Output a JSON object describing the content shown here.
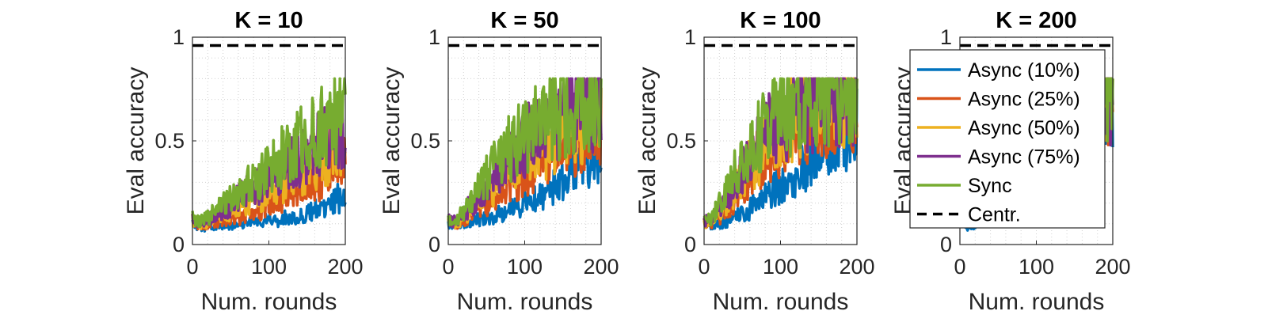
{
  "chart_data": [
    {
      "type": "line",
      "title": "K = 10",
      "xlabel": "Num. rounds",
      "ylabel": "Eval accuracy",
      "xlim": [
        0,
        200
      ],
      "ylim": [
        0,
        1
      ],
      "xticks": [
        "0",
        "100",
        "200"
      ],
      "yticks": [
        "0",
        "0.5",
        "1"
      ],
      "grid": "on",
      "reference_line": {
        "name": "Centr.",
        "value": 0.96
      },
      "series": [
        {
          "name": "Async (10%)",
          "x": [
            0,
            10,
            20,
            30,
            40,
            50,
            60,
            70,
            80,
            90,
            100,
            110,
            120,
            130,
            140,
            150,
            160,
            170,
            180,
            190,
            200
          ],
          "y": [
            0.1,
            0.09,
            0.08,
            0.09,
            0.1,
            0.09,
            0.1,
            0.1,
            0.11,
            0.11,
            0.12,
            0.11,
            0.13,
            0.14,
            0.13,
            0.15,
            0.17,
            0.16,
            0.18,
            0.22,
            0.23
          ]
        },
        {
          "name": "Async (25%)",
          "x": [
            0,
            10,
            20,
            30,
            40,
            50,
            60,
            70,
            80,
            90,
            100,
            110,
            120,
            130,
            140,
            150,
            160,
            170,
            180,
            190,
            200
          ],
          "y": [
            0.11,
            0.09,
            0.1,
            0.11,
            0.12,
            0.13,
            0.13,
            0.15,
            0.16,
            0.17,
            0.19,
            0.2,
            0.22,
            0.24,
            0.27,
            0.3,
            0.3,
            0.33,
            0.36,
            0.37,
            0.42
          ]
        },
        {
          "name": "Async (50%)",
          "x": [
            0,
            10,
            20,
            30,
            40,
            50,
            60,
            70,
            80,
            90,
            100,
            110,
            120,
            130,
            140,
            150,
            160,
            170,
            180,
            190,
            200
          ],
          "y": [
            0.12,
            0.1,
            0.11,
            0.13,
            0.15,
            0.16,
            0.18,
            0.2,
            0.21,
            0.23,
            0.26,
            0.28,
            0.3,
            0.33,
            0.35,
            0.38,
            0.4,
            0.43,
            0.45,
            0.48,
            0.5
          ]
        },
        {
          "name": "Async (75%)",
          "x": [
            0,
            10,
            20,
            30,
            40,
            50,
            60,
            70,
            80,
            90,
            100,
            110,
            120,
            130,
            140,
            150,
            160,
            170,
            180,
            190,
            200
          ],
          "y": [
            0.12,
            0.11,
            0.12,
            0.15,
            0.17,
            0.19,
            0.22,
            0.25,
            0.27,
            0.3,
            0.32,
            0.34,
            0.37,
            0.39,
            0.42,
            0.44,
            0.47,
            0.5,
            0.52,
            0.54,
            0.55
          ]
        },
        {
          "name": "Sync",
          "x": [
            0,
            10,
            20,
            30,
            40,
            50,
            60,
            70,
            80,
            90,
            100,
            110,
            120,
            130,
            140,
            150,
            160,
            170,
            180,
            190,
            200
          ],
          "y": [
            0.13,
            0.11,
            0.13,
            0.16,
            0.19,
            0.22,
            0.25,
            0.28,
            0.31,
            0.34,
            0.37,
            0.4,
            0.43,
            0.46,
            0.49,
            0.52,
            0.55,
            0.57,
            0.59,
            0.61,
            0.62
          ]
        }
      ]
    },
    {
      "type": "line",
      "title": "K = 50",
      "xlabel": "Num. rounds",
      "ylabel": "Eval accuracy",
      "xlim": [
        0,
        200
      ],
      "ylim": [
        0,
        1
      ],
      "xticks": [
        "0",
        "100",
        "200"
      ],
      "yticks": [
        "0",
        "0.5",
        "1"
      ],
      "grid": "on",
      "reference_line": {
        "name": "Centr.",
        "value": 0.96
      },
      "series": [
        {
          "name": "Async (10%)",
          "x": [
            0,
            10,
            20,
            30,
            40,
            50,
            60,
            70,
            80,
            90,
            100,
            110,
            120,
            130,
            140,
            150,
            160,
            170,
            180,
            190,
            200
          ],
          "y": [
            0.1,
            0.09,
            0.1,
            0.11,
            0.12,
            0.13,
            0.14,
            0.15,
            0.17,
            0.18,
            0.2,
            0.22,
            0.24,
            0.26,
            0.28,
            0.31,
            0.33,
            0.36,
            0.38,
            0.41,
            0.44
          ]
        },
        {
          "name": "Async (25%)",
          "x": [
            0,
            10,
            20,
            30,
            40,
            50,
            60,
            70,
            80,
            90,
            100,
            110,
            120,
            130,
            140,
            150,
            160,
            170,
            180,
            190,
            200
          ],
          "y": [
            0.11,
            0.1,
            0.12,
            0.14,
            0.17,
            0.2,
            0.23,
            0.26,
            0.29,
            0.32,
            0.35,
            0.38,
            0.41,
            0.43,
            0.46,
            0.48,
            0.5,
            0.52,
            0.54,
            0.56,
            0.58
          ]
        },
        {
          "name": "Async (50%)",
          "x": [
            0,
            10,
            20,
            30,
            40,
            50,
            60,
            70,
            80,
            90,
            100,
            110,
            120,
            130,
            140,
            150,
            160,
            170,
            180,
            190,
            200
          ],
          "y": [
            0.11,
            0.1,
            0.13,
            0.16,
            0.2,
            0.24,
            0.28,
            0.32,
            0.35,
            0.38,
            0.41,
            0.44,
            0.47,
            0.49,
            0.52,
            0.54,
            0.56,
            0.58,
            0.6,
            0.62,
            0.63
          ]
        },
        {
          "name": "Async (75%)",
          "x": [
            0,
            10,
            20,
            30,
            40,
            50,
            60,
            70,
            80,
            90,
            100,
            110,
            120,
            130,
            140,
            150,
            160,
            170,
            180,
            190,
            200
          ],
          "y": [
            0.12,
            0.11,
            0.15,
            0.19,
            0.24,
            0.29,
            0.34,
            0.38,
            0.42,
            0.46,
            0.49,
            0.52,
            0.55,
            0.58,
            0.6,
            0.62,
            0.64,
            0.66,
            0.68,
            0.7,
            0.71
          ]
        },
        {
          "name": "Sync",
          "x": [
            0,
            10,
            20,
            30,
            40,
            50,
            60,
            70,
            80,
            90,
            100,
            110,
            120,
            130,
            140,
            150,
            160,
            170,
            180,
            190,
            200
          ],
          "y": [
            0.12,
            0.11,
            0.16,
            0.21,
            0.27,
            0.32,
            0.37,
            0.42,
            0.46,
            0.5,
            0.53,
            0.56,
            0.59,
            0.61,
            0.63,
            0.65,
            0.67,
            0.68,
            0.69,
            0.71,
            0.72
          ]
        }
      ]
    },
    {
      "type": "line",
      "title": "K = 100",
      "xlabel": "Num. rounds",
      "ylabel": "Eval accuracy",
      "xlim": [
        0,
        200
      ],
      "ylim": [
        0,
        1
      ],
      "xticks": [
        "0",
        "100",
        "200"
      ],
      "yticks": [
        "0",
        "0.5",
        "1"
      ],
      "grid": "on",
      "reference_line": {
        "name": "Centr.",
        "value": 0.96
      },
      "series": [
        {
          "name": "Async (10%)",
          "x": [
            0,
            10,
            20,
            30,
            40,
            50,
            60,
            70,
            80,
            90,
            100,
            110,
            120,
            130,
            140,
            150,
            160,
            170,
            180,
            190,
            200
          ],
          "y": [
            0.1,
            0.09,
            0.1,
            0.11,
            0.13,
            0.15,
            0.17,
            0.2,
            0.23,
            0.26,
            0.29,
            0.32,
            0.35,
            0.38,
            0.41,
            0.44,
            0.47,
            0.5,
            0.53,
            0.56,
            0.6
          ]
        },
        {
          "name": "Async (25%)",
          "x": [
            0,
            10,
            20,
            30,
            40,
            50,
            60,
            70,
            80,
            90,
            100,
            110,
            120,
            130,
            140,
            150,
            160,
            170,
            180,
            190,
            200
          ],
          "y": [
            0.11,
            0.1,
            0.13,
            0.17,
            0.22,
            0.27,
            0.32,
            0.37,
            0.42,
            0.46,
            0.5,
            0.53,
            0.56,
            0.59,
            0.61,
            0.63,
            0.65,
            0.66,
            0.67,
            0.68,
            0.69
          ]
        },
        {
          "name": "Async (50%)",
          "x": [
            0,
            10,
            20,
            30,
            40,
            50,
            60,
            70,
            80,
            90,
            100,
            110,
            120,
            130,
            140,
            150,
            160,
            170,
            180,
            190,
            200
          ],
          "y": [
            0.11,
            0.11,
            0.15,
            0.2,
            0.26,
            0.32,
            0.38,
            0.43,
            0.48,
            0.52,
            0.56,
            0.59,
            0.62,
            0.64,
            0.66,
            0.68,
            0.69,
            0.7,
            0.71,
            0.72,
            0.73
          ]
        },
        {
          "name": "Async (75%)",
          "x": [
            0,
            10,
            20,
            30,
            40,
            50,
            60,
            70,
            80,
            90,
            100,
            110,
            120,
            130,
            140,
            150,
            160,
            170,
            180,
            190,
            200
          ],
          "y": [
            0.12,
            0.12,
            0.17,
            0.23,
            0.3,
            0.37,
            0.43,
            0.48,
            0.53,
            0.57,
            0.6,
            0.63,
            0.65,
            0.67,
            0.69,
            0.71,
            0.72,
            0.73,
            0.74,
            0.74,
            0.75
          ]
        },
        {
          "name": "Sync",
          "x": [
            0,
            10,
            20,
            30,
            40,
            50,
            60,
            70,
            80,
            90,
            100,
            110,
            120,
            130,
            140,
            150,
            160,
            170,
            180,
            190,
            200
          ],
          "y": [
            0.12,
            0.13,
            0.19,
            0.26,
            0.34,
            0.41,
            0.47,
            0.52,
            0.56,
            0.6,
            0.63,
            0.65,
            0.67,
            0.69,
            0.7,
            0.71,
            0.72,
            0.73,
            0.74,
            0.74,
            0.75
          ]
        }
      ]
    },
    {
      "type": "line",
      "title": "K = 200",
      "xlabel": "Num. rounds",
      "ylabel": "Eval accuracy",
      "xlim": [
        0,
        200
      ],
      "ylim": [
        0,
        1
      ],
      "xticks": [
        "0",
        "100",
        "200"
      ],
      "yticks": [
        "0",
        "0.5",
        "1"
      ],
      "grid": "on",
      "reference_line": {
        "name": "Centr.",
        "value": 0.96
      },
      "legend_position": "inside",
      "series": [
        {
          "name": "Async (10%)",
          "x": [
            0,
            10,
            20,
            30,
            40,
            50,
            60,
            70,
            80,
            90,
            100,
            110,
            120,
            130,
            140,
            150,
            160,
            170,
            180,
            190,
            200
          ],
          "y": [
            0.1,
            0.09,
            0.1,
            0.12,
            0.15,
            0.18,
            0.22,
            0.26,
            0.3,
            0.34,
            0.38,
            0.42,
            0.46,
            0.5,
            0.53,
            0.56,
            0.59,
            0.61,
            0.63,
            0.64,
            0.65
          ]
        },
        {
          "name": "Async (25%)",
          "x": [
            0,
            10,
            20,
            30,
            40,
            50,
            60,
            70,
            80,
            90,
            100,
            110,
            120,
            130,
            140,
            150,
            160,
            170,
            180,
            190,
            200
          ],
          "y": [
            0.11,
            0.11,
            0.14,
            0.19,
            0.25,
            0.31,
            0.37,
            0.43,
            0.48,
            0.53,
            0.57,
            0.6,
            0.63,
            0.65,
            0.67,
            0.68,
            0.69,
            0.7,
            0.71,
            0.72,
            0.72
          ]
        },
        {
          "name": "Async (50%)",
          "x": [
            0,
            10,
            20,
            30,
            40,
            50,
            60,
            70,
            80,
            90,
            100,
            110,
            120,
            130,
            140,
            150,
            160,
            170,
            180,
            190,
            200
          ],
          "y": [
            0.11,
            0.12,
            0.16,
            0.22,
            0.29,
            0.36,
            0.42,
            0.48,
            0.53,
            0.57,
            0.61,
            0.64,
            0.66,
            0.68,
            0.7,
            0.71,
            0.72,
            0.73,
            0.73,
            0.74,
            0.74
          ]
        },
        {
          "name": "Async (75%)",
          "x": [
            0,
            10,
            20,
            30,
            40,
            50,
            60,
            70,
            80,
            90,
            100,
            110,
            120,
            130,
            140,
            150,
            160,
            170,
            180,
            190,
            200
          ],
          "y": [
            0.12,
            0.13,
            0.18,
            0.25,
            0.32,
            0.39,
            0.46,
            0.51,
            0.56,
            0.6,
            0.63,
            0.66,
            0.68,
            0.7,
            0.71,
            0.72,
            0.73,
            0.74,
            0.75,
            0.75,
            0.76
          ]
        },
        {
          "name": "Sync",
          "x": [
            0,
            10,
            20,
            30,
            40,
            50,
            60,
            70,
            80,
            90,
            100,
            110,
            120,
            130,
            140,
            150,
            160,
            170,
            180,
            190,
            200
          ],
          "y": [
            0.12,
            0.14,
            0.2,
            0.27,
            0.35,
            0.42,
            0.49,
            0.54,
            0.58,
            0.62,
            0.65,
            0.67,
            0.69,
            0.71,
            0.72,
            0.73,
            0.74,
            0.75,
            0.75,
            0.76,
            0.76
          ]
        }
      ]
    }
  ],
  "legend": {
    "entries": [
      {
        "label": "Async (10%)",
        "color": "#0072BD",
        "style": "solid"
      },
      {
        "label": "Async (25%)",
        "color": "#D95319",
        "style": "solid"
      },
      {
        "label": "Async (50%)",
        "color": "#EDB120",
        "style": "solid"
      },
      {
        "label": "Async (75%)",
        "color": "#7E2F8E",
        "style": "solid"
      },
      {
        "label": "Sync",
        "color": "#77AC30",
        "style": "solid"
      },
      {
        "label": "Centr.",
        "color": "#000000",
        "style": "dashed"
      }
    ]
  },
  "colors": {
    "async10": "#0072BD",
    "async25": "#D95319",
    "async50": "#EDB120",
    "async75": "#7E2F8E",
    "sync": "#77AC30",
    "centr": "#000000"
  }
}
